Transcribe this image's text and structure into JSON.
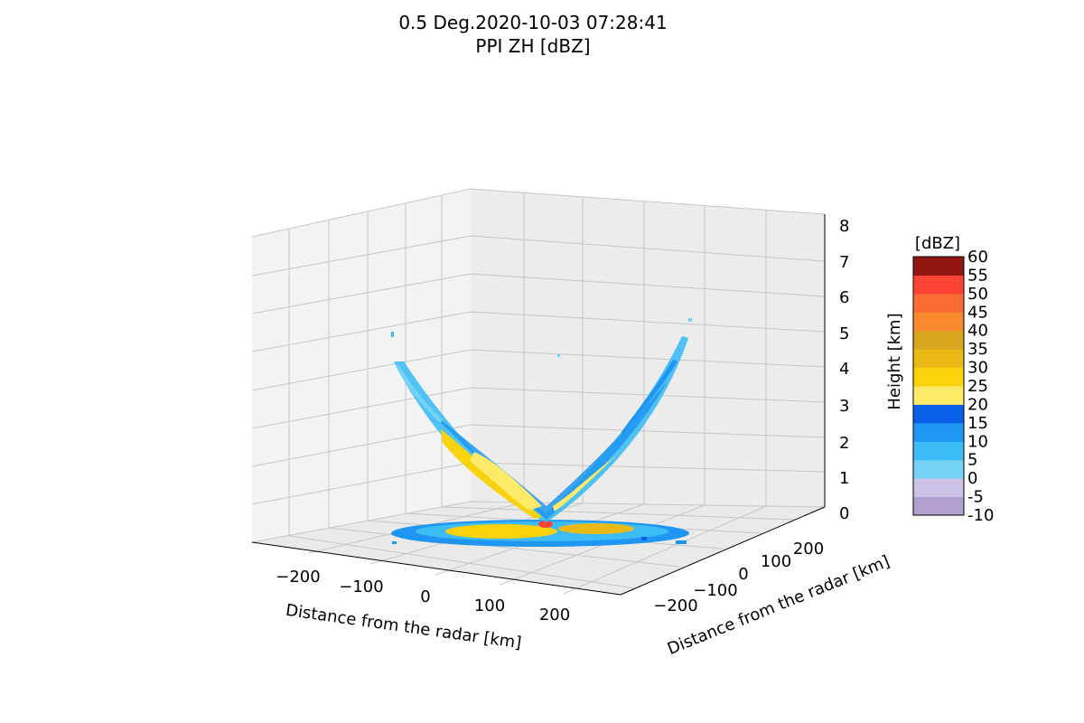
{
  "chart_data": {
    "type": "surface3d",
    "title": "0.5 Deg.2020-10-03 07:28:41",
    "subtitle": "PPI ZH [dBZ]",
    "xlabel": "Distance from the radar [km]",
    "ylabel": "Distance from the radar [km]",
    "zlabel": "Height [km]",
    "x_ticks": [
      "−200",
      "−100",
      "0",
      "100",
      "200"
    ],
    "y_ticks": [
      "−200",
      "−100",
      "0",
      "100",
      "200"
    ],
    "z_ticks": [
      "0",
      "1",
      "2",
      "3",
      "4",
      "5",
      "6",
      "7",
      "8"
    ],
    "xlim": [
      -250,
      250
    ],
    "ylim": [
      -250,
      250
    ],
    "zlim": [
      0,
      8
    ],
    "grid": true,
    "colorbar": {
      "label": "[dBZ]",
      "ticks": [
        "-10",
        "-5",
        "0",
        "5",
        "10",
        "15",
        "20",
        "25",
        "30",
        "35",
        "40",
        "45",
        "50",
        "55",
        "60"
      ],
      "bin_colors": [
        "#b09fcf",
        "#cdc1e6",
        "#74d2f5",
        "#3ebcf5",
        "#1f96f2",
        "#0a5fe8",
        "#fdea69",
        "#f9d20c",
        "#e9ba16",
        "#d8a621",
        "#f98b2e",
        "#fb6b35",
        "#fd4434",
        "#911611"
      ]
    }
  }
}
